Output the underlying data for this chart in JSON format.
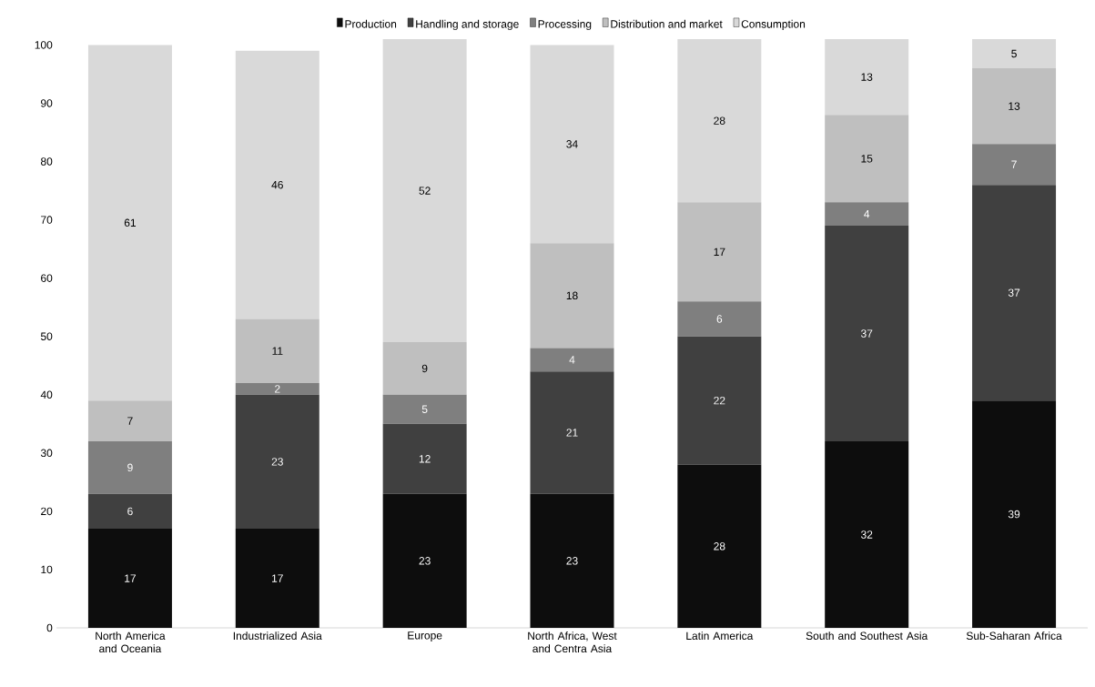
{
  "chart_data": {
    "type": "bar",
    "stacked": true,
    "categories": [
      "North America and Oceania",
      "Industrialized Asia",
      "Europe",
      "North Africa, West and Centra Asia",
      "Latin America",
      "South and Southest Asia",
      "Sub-Saharan Africa"
    ],
    "series": [
      {
        "name": "Production",
        "color": "#0d0d0d",
        "values": [
          17,
          17,
          23,
          23,
          28,
          32,
          39
        ]
      },
      {
        "name": "Handling and storage",
        "color": "#404040",
        "values": [
          6,
          23,
          12,
          21,
          22,
          37,
          37
        ]
      },
      {
        "name": "Processing",
        "color": "#7f7f7f",
        "values": [
          9,
          2,
          5,
          4,
          6,
          4,
          7
        ]
      },
      {
        "name": "Distribution and market",
        "color": "#bfbfbf",
        "values": [
          7,
          11,
          9,
          18,
          17,
          15,
          13
        ]
      },
      {
        "name": "Consumption",
        "color": "#d9d9d9",
        "values": [
          61,
          46,
          52,
          34,
          28,
          13,
          5
        ]
      }
    ],
    "ylim": [
      0,
      101
    ],
    "yticks": [
      0,
      10,
      20,
      30,
      40,
      50,
      60,
      70,
      80,
      90,
      100
    ],
    "data_labels": true,
    "legend": "top",
    "grid": false
  }
}
